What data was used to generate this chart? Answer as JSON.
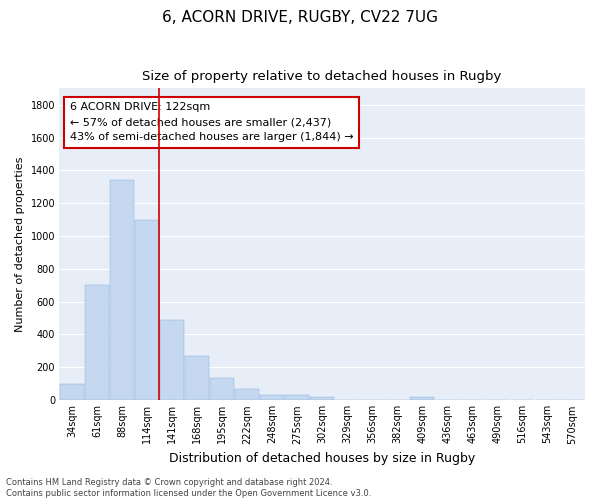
{
  "title1": "6, ACORN DRIVE, RUGBY, CV22 7UG",
  "title2": "Size of property relative to detached houses in Rugby",
  "xlabel": "Distribution of detached houses by size in Rugby",
  "ylabel": "Number of detached properties",
  "categories": [
    "34sqm",
    "61sqm",
    "88sqm",
    "114sqm",
    "141sqm",
    "168sqm",
    "195sqm",
    "222sqm",
    "248sqm",
    "275sqm",
    "302sqm",
    "329sqm",
    "356sqm",
    "382sqm",
    "409sqm",
    "436sqm",
    "463sqm",
    "490sqm",
    "516sqm",
    "543sqm",
    "570sqm"
  ],
  "values": [
    100,
    700,
    1340,
    1095,
    490,
    270,
    137,
    70,
    33,
    33,
    17,
    0,
    0,
    0,
    17,
    0,
    0,
    0,
    0,
    0,
    0
  ],
  "bar_color": "#c5d8f0",
  "bar_edge_color": "#7aaad4",
  "vline_x": 3.5,
  "vline_color": "#cc0000",
  "annotation_line1": "6 ACORN DRIVE: 122sqm",
  "annotation_line2": "← 57% of detached houses are smaller (2,437)",
  "annotation_line3": "43% of semi-detached houses are larger (1,844) →",
  "annotation_box_color": "#ffffff",
  "annotation_box_edge": "#cc0000",
  "ylim": [
    0,
    1900
  ],
  "yticks": [
    0,
    200,
    400,
    600,
    800,
    1000,
    1200,
    1400,
    1600,
    1800
  ],
  "fig_background": "#ffffff",
  "ax_background": "#e8eef8",
  "grid_color": "#ffffff",
  "footer": "Contains HM Land Registry data © Crown copyright and database right 2024.\nContains public sector information licensed under the Open Government Licence v3.0.",
  "title1_fontsize": 11,
  "title2_fontsize": 9.5,
  "xlabel_fontsize": 9,
  "ylabel_fontsize": 8,
  "tick_fontsize": 7,
  "annotation_fontsize": 8,
  "footer_fontsize": 6
}
